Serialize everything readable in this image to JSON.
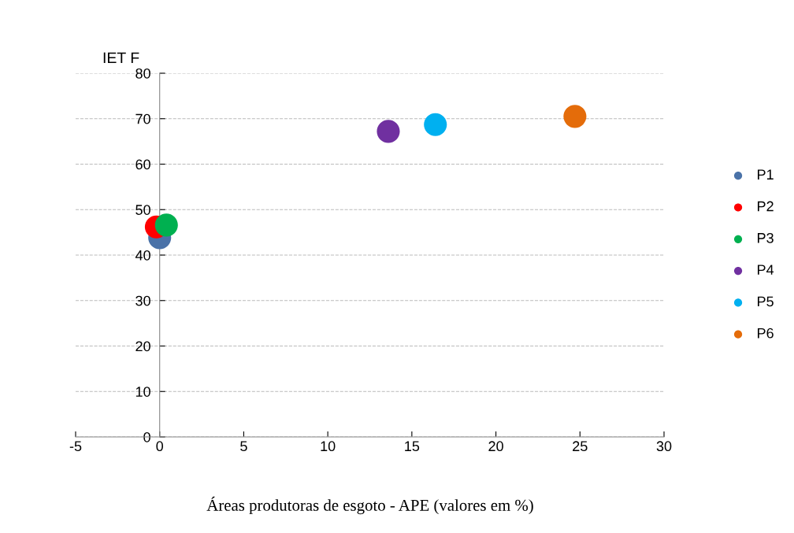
{
  "chart_data": {
    "type": "scatter",
    "ylabel": "IET F",
    "xlabel": "Áreas produtoras de esgoto - APE (valores em %)",
    "xlim": [
      -5,
      30
    ],
    "xticks": [
      -5,
      0,
      5,
      10,
      15,
      20,
      25,
      30
    ],
    "ylim": [
      0,
      80
    ],
    "yticks": [
      0,
      10,
      20,
      30,
      40,
      50,
      60,
      70,
      80
    ],
    "grid": "y",
    "legend": "right",
    "marker": "circle",
    "series": [
      {
        "name": "P1",
        "color": "#4a72a8",
        "x": [
          0
        ],
        "values": [
          43.8
        ]
      },
      {
        "name": "P2",
        "color": "#ff0000",
        "x": [
          -0.2
        ],
        "values": [
          46.2
        ]
      },
      {
        "name": "P3",
        "color": "#00b050",
        "x": [
          0.4
        ],
        "values": [
          46.6
        ]
      },
      {
        "name": "P4",
        "color": "#7030a0",
        "x": [
          13.6
        ],
        "values": [
          67.2
        ]
      },
      {
        "name": "P5",
        "color": "#00b0f0",
        "x": [
          16.4
        ],
        "values": [
          68.7
        ]
      },
      {
        "name": "P6",
        "color": "#e46c0a",
        "x": [
          24.7
        ],
        "values": [
          70.5
        ]
      }
    ]
  }
}
